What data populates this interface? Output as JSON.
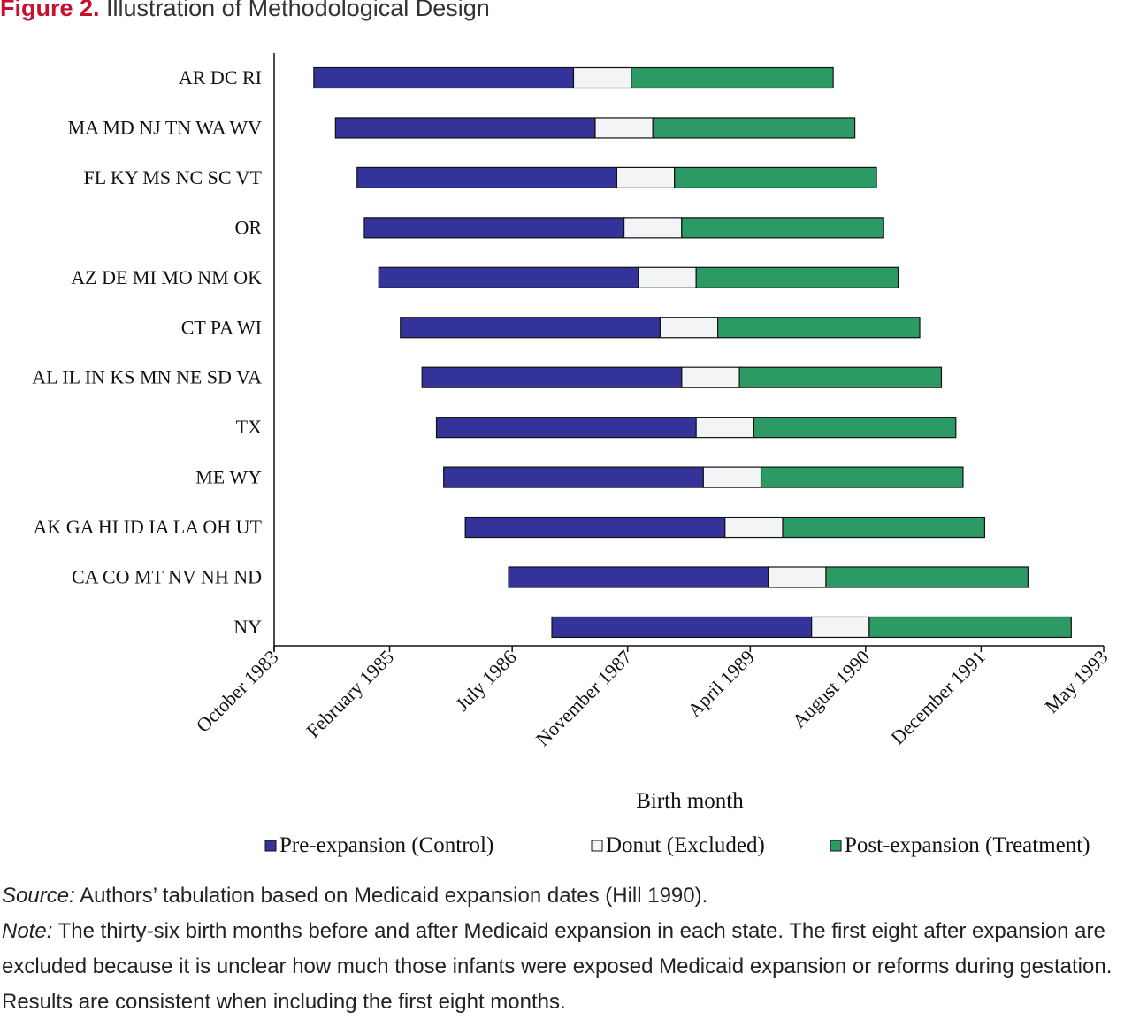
{
  "figure": {
    "label": "Figure 2.",
    "title": "Illustration of Methodological Design"
  },
  "chart_data": {
    "type": "bar",
    "orientation": "horizontal",
    "stacked": true,
    "xlabel": "Birth month",
    "ylabel": "",
    "x_tick_labels": [
      "October 1983",
      "February 1985",
      "July 1986",
      "November 1987",
      "April 1989",
      "August  1990",
      "December 1991",
      "May 1993"
    ],
    "x_ticks_months": [
      0,
      16,
      33,
      49,
      66,
      82,
      98,
      115
    ],
    "x_unit": "months since October 1983",
    "xlim": [
      0,
      115
    ],
    "categories": [
      "AR DC RI",
      "MA MD NJ TN WA WV",
      "FL KY MS NC SC VT",
      "OR",
      "AZ DE MI MO NM OK",
      "CT PA WI",
      "AL IL IN KS MN NE SD VA",
      "TX",
      "ME WY",
      "AK GA HI ID IA LA OH UT",
      "CA CO MT NV NH ND",
      "NY"
    ],
    "series": [
      {
        "name": "Pre-expansion (Control)",
        "color": "#33339a",
        "start": [
          5.5,
          8.5,
          11.5,
          12.5,
          14.5,
          17.5,
          20.5,
          22.5,
          23.5,
          26.5,
          32.5,
          38.5
        ],
        "values": [
          36,
          36,
          36,
          36,
          36,
          36,
          36,
          36,
          36,
          36,
          36,
          36
        ]
      },
      {
        "name": "Donut (Excluded)",
        "color": "#f3f4f6",
        "values": [
          8,
          8,
          8,
          8,
          8,
          8,
          8,
          8,
          8,
          8,
          8,
          8
        ]
      },
      {
        "name": "Post-expansion (Treatment)",
        "color": "#2b9a64",
        "values": [
          28,
          28,
          28,
          28,
          28,
          28,
          28,
          28,
          28,
          28,
          28,
          28
        ]
      }
    ],
    "legend_position": "bottom",
    "grid": false
  },
  "caption": {
    "source_label": "Source:",
    "source_text": " Authors’ tabulation based on Medicaid expansion dates (Hill 1990).",
    "note_label": "Note:",
    "note_text": " The thirty-six birth months before and after Medicaid expansion in each state. The first eight after expansion are excluded because it is unclear how much those infants were exposed Medicaid expansion or reforms during gestation. Results are consistent when including the first eight months."
  }
}
